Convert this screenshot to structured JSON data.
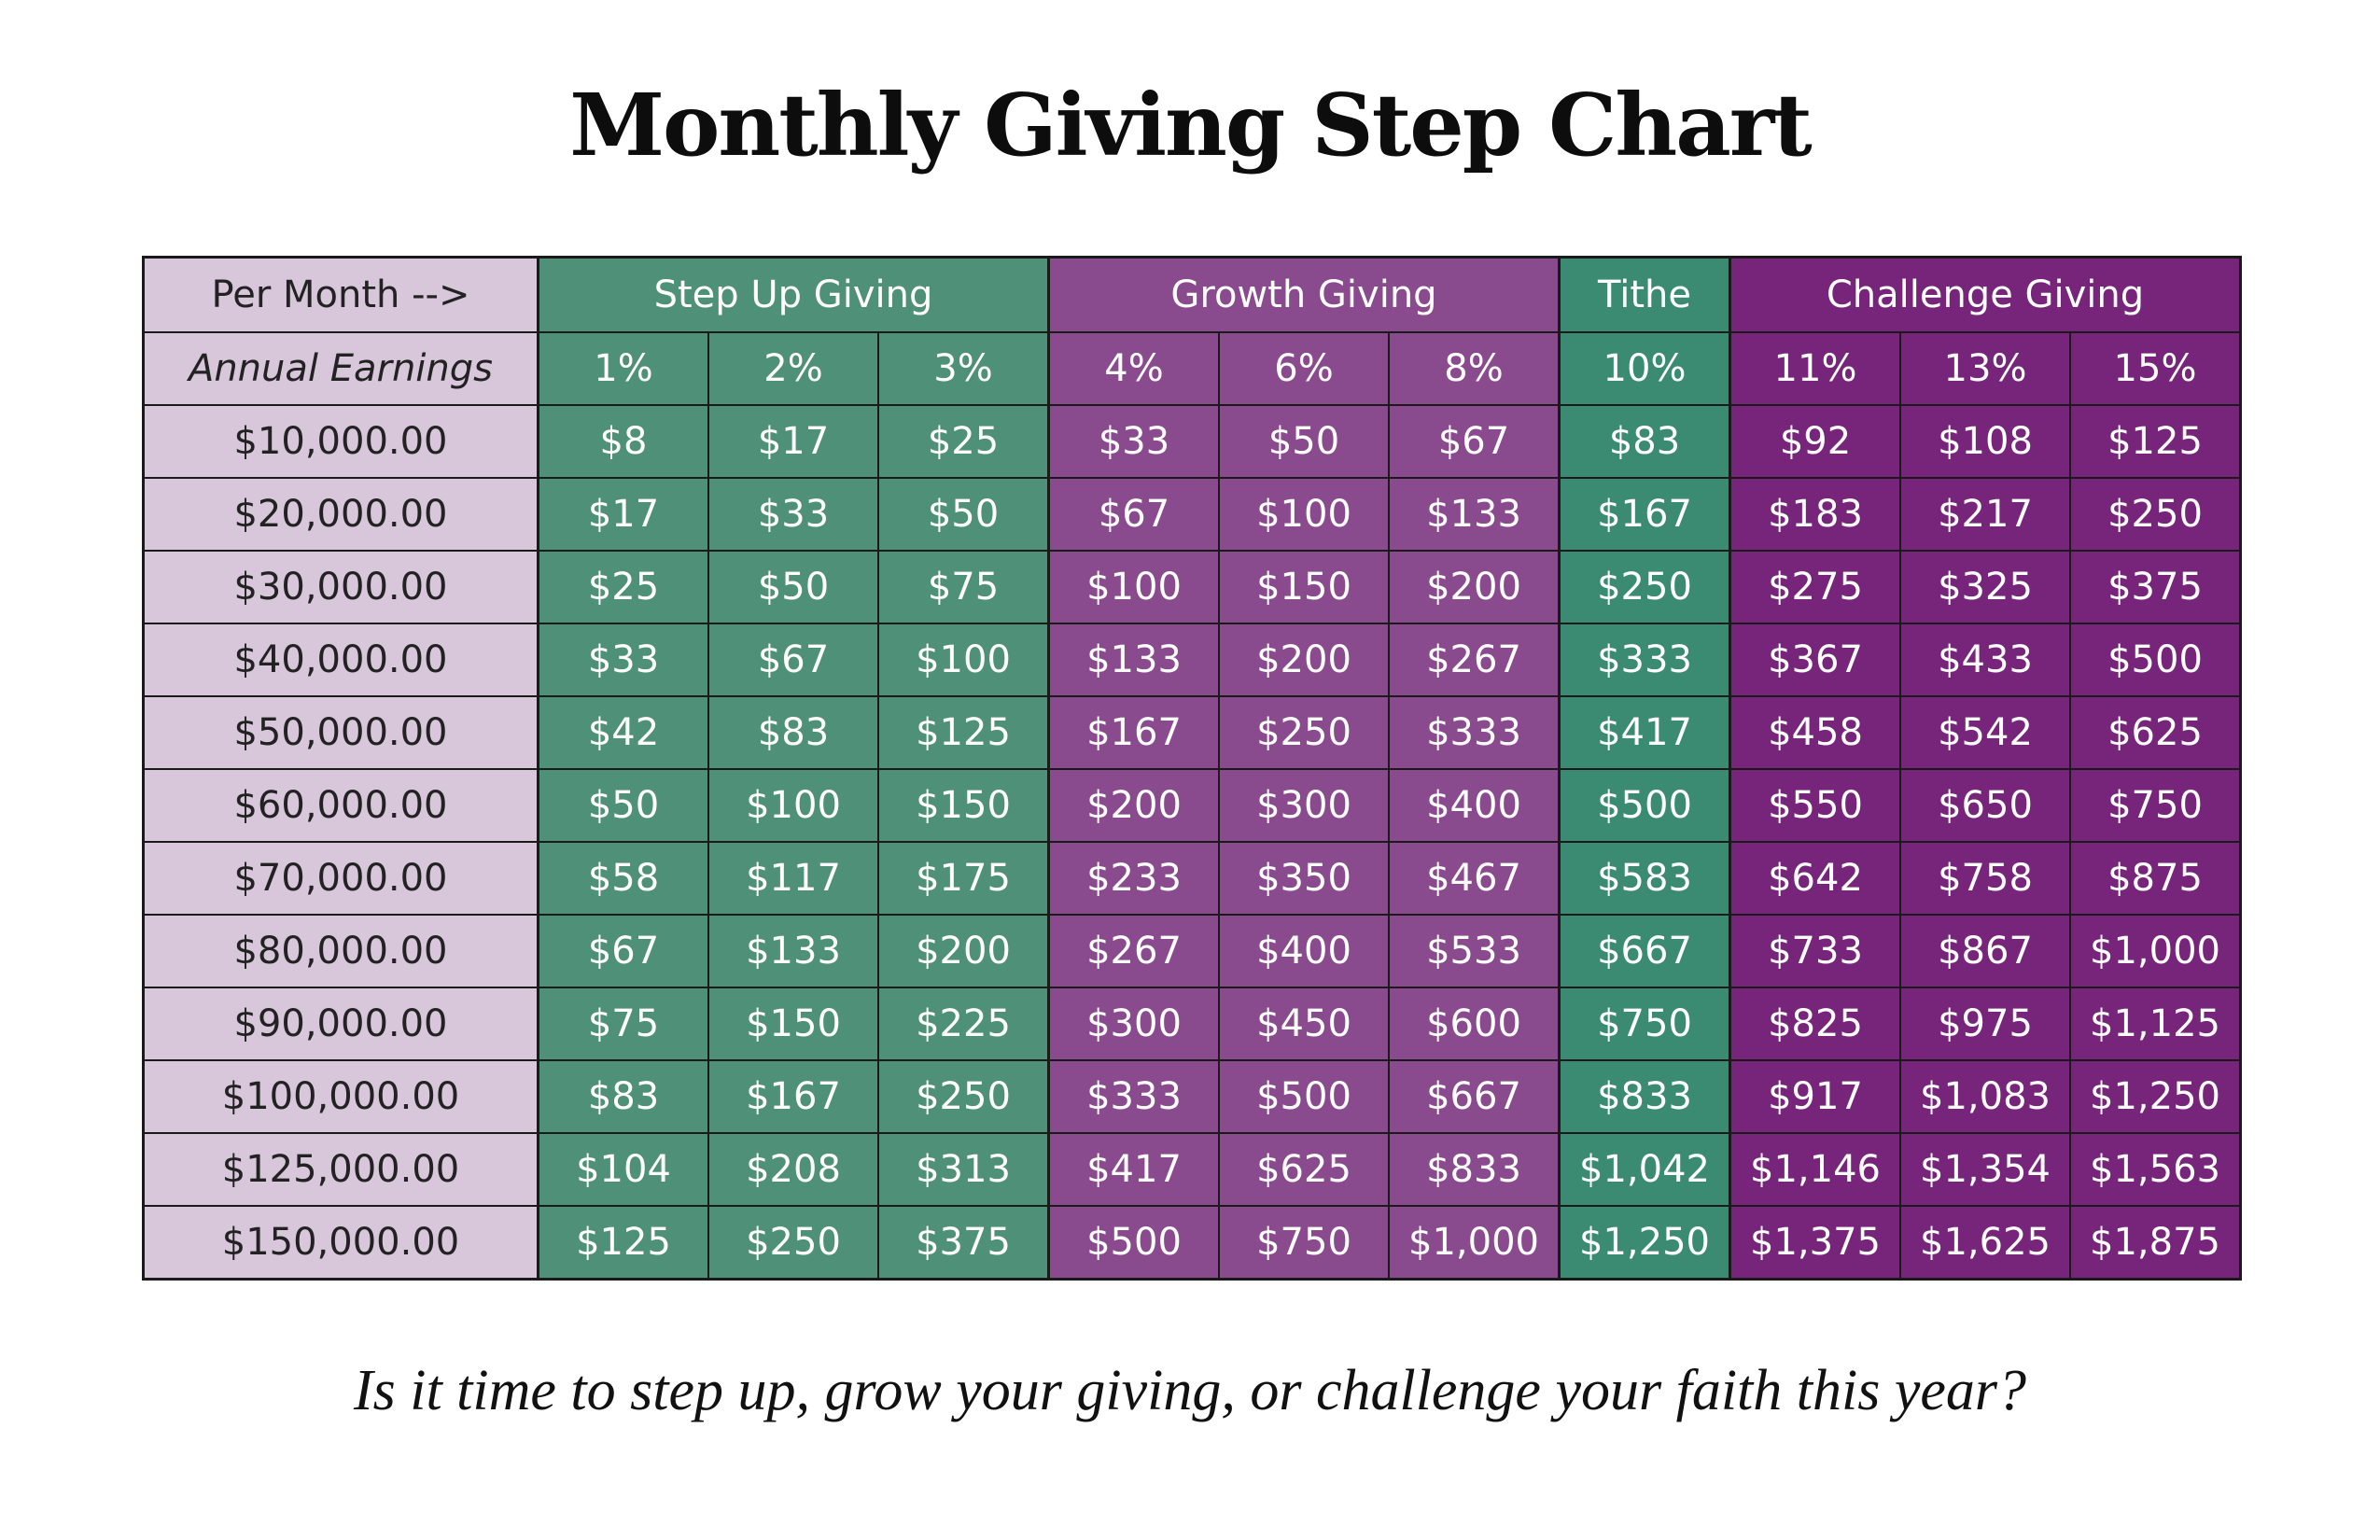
{
  "title": "Monthly Giving Step Chart",
  "tagline": "Is it time to step up, grow your giving, or challenge your faith this year?",
  "colors": {
    "label_bg": "#d8c6db",
    "step_up": "#4f9078",
    "growth": "#8a4a8e",
    "tithe": "#3b8a72",
    "challenge": "#76257a"
  },
  "table": {
    "header_row1_label": "Per Month -->",
    "header_row2_label": "Annual Earnings",
    "groups": [
      {
        "name": "Step Up Giving",
        "key": "step",
        "span": 3
      },
      {
        "name": "Growth Giving",
        "key": "growth",
        "span": 3
      },
      {
        "name": "Tithe",
        "key": "tithe",
        "span": 1
      },
      {
        "name": "Challenge Giving",
        "key": "challenge",
        "span": 3
      }
    ],
    "percents": [
      "1%",
      "2%",
      "3%",
      "4%",
      "6%",
      "8%",
      "10%",
      "11%",
      "13%",
      "15%"
    ],
    "column_groups": [
      "step",
      "step",
      "step",
      "growth",
      "growth",
      "growth",
      "tithe",
      "challenge",
      "challenge",
      "challenge"
    ],
    "rows": [
      {
        "earnings": "$10,000.00",
        "values": [
          "$8",
          "$17",
          "$25",
          "$33",
          "$50",
          "$67",
          "$83",
          "$92",
          "$108",
          "$125"
        ]
      },
      {
        "earnings": "$20,000.00",
        "values": [
          "$17",
          "$33",
          "$50",
          "$67",
          "$100",
          "$133",
          "$167",
          "$183",
          "$217",
          "$250"
        ]
      },
      {
        "earnings": "$30,000.00",
        "values": [
          "$25",
          "$50",
          "$75",
          "$100",
          "$150",
          "$200",
          "$250",
          "$275",
          "$325",
          "$375"
        ]
      },
      {
        "earnings": "$40,000.00",
        "values": [
          "$33",
          "$67",
          "$100",
          "$133",
          "$200",
          "$267",
          "$333",
          "$367",
          "$433",
          "$500"
        ]
      },
      {
        "earnings": "$50,000.00",
        "values": [
          "$42",
          "$83",
          "$125",
          "$167",
          "$250",
          "$333",
          "$417",
          "$458",
          "$542",
          "$625"
        ]
      },
      {
        "earnings": "$60,000.00",
        "values": [
          "$50",
          "$100",
          "$150",
          "$200",
          "$300",
          "$400",
          "$500",
          "$550",
          "$650",
          "$750"
        ]
      },
      {
        "earnings": "$70,000.00",
        "values": [
          "$58",
          "$117",
          "$175",
          "$233",
          "$350",
          "$467",
          "$583",
          "$642",
          "$758",
          "$875"
        ]
      },
      {
        "earnings": "$80,000.00",
        "values": [
          "$67",
          "$133",
          "$200",
          "$267",
          "$400",
          "$533",
          "$667",
          "$733",
          "$867",
          "$1,000"
        ]
      },
      {
        "earnings": "$90,000.00",
        "values": [
          "$75",
          "$150",
          "$225",
          "$300",
          "$450",
          "$600",
          "$750",
          "$825",
          "$975",
          "$1,125"
        ]
      },
      {
        "earnings": "$100,000.00",
        "values": [
          "$83",
          "$167",
          "$250",
          "$333",
          "$500",
          "$667",
          "$833",
          "$917",
          "$1,083",
          "$1,250"
        ]
      },
      {
        "earnings": "$125,000.00",
        "values": [
          "$104",
          "$208",
          "$313",
          "$417",
          "$625",
          "$833",
          "$1,042",
          "$1,146",
          "$1,354",
          "$1,563"
        ]
      },
      {
        "earnings": "$150,000.00",
        "values": [
          "$125",
          "$250",
          "$375",
          "$500",
          "$750",
          "$1,000",
          "$1,250",
          "$1,375",
          "$1,625",
          "$1,875"
        ]
      }
    ]
  }
}
